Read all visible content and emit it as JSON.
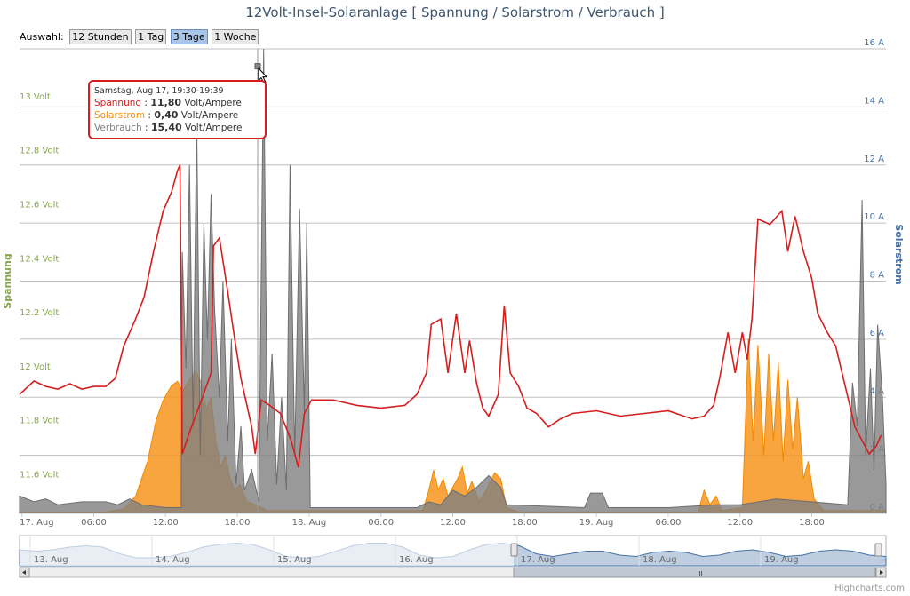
{
  "title": "12Volt-Insel-Solaranlage [ Spannung / Solarstrom / Verbrauch ]",
  "range_selector": {
    "label": "Auswahl:",
    "buttons": [
      "12 Stunden",
      "1 Tag",
      "3 Tage",
      "1 Woche"
    ],
    "active": "3 Tage"
  },
  "tooltip": {
    "header": "Samstag, Aug 17, 19:30-19:39",
    "rows": [
      {
        "name": "Spannung",
        "value": "11,80",
        "unit": "Volt/Ampere",
        "color": "#d61e1e"
      },
      {
        "name": "Solarstrom",
        "value": "0,40",
        "unit": "Volt/Ampere",
        "color": "#ff8c00"
      },
      {
        "name": "Verbrauch",
        "value": "15,40",
        "unit": "Volt/Ampere",
        "color": "#808080"
      }
    ]
  },
  "credits": "Highcharts.com",
  "colors": {
    "spannung": "#d61e1e",
    "solarstrom": "#f7941d",
    "verbrauch": "#808080",
    "left_axis": "#89a54e",
    "right_axis": "#4572a7",
    "navigator": "#4572a7"
  },
  "chart_data": {
    "type": "line",
    "xlabel": "",
    "x_ticks": [
      "17. Aug",
      "06:00",
      "12:00",
      "18:00",
      "18. Aug",
      "06:00",
      "12:00",
      "18:00",
      "19. Aug",
      "06:00",
      "12:00",
      "18:00"
    ],
    "x_tick_hours": [
      0,
      6,
      12,
      18,
      24,
      30,
      36,
      42,
      48,
      54,
      60,
      66
    ],
    "x_range_hours": [
      -0.2,
      72.2
    ],
    "y_left": {
      "label": "Spannung",
      "ticks": [
        "11.6 Volt",
        "11.8 Volt",
        "12 Volt",
        "12.2 Volt",
        "12.4 Volt",
        "12.6 Volt",
        "12.8 Volt",
        "13 Volt"
      ],
      "range": [
        11.48,
        13.2
      ],
      "unit": "Volt"
    },
    "y_right": {
      "label": "Solarstrom",
      "ticks": [
        "0 A",
        "2 A",
        "4 A",
        "6 A",
        "8 A",
        "10 A",
        "12 A",
        "14 A",
        "16 A"
      ],
      "range": [
        0,
        16
      ],
      "unit": "A"
    },
    "grid": true,
    "series": [
      {
        "name": "Spannung",
        "axis": "left",
        "type": "line",
        "points": [
          [
            -0.2,
            11.92
          ],
          [
            1,
            11.97
          ],
          [
            2,
            11.95
          ],
          [
            3,
            11.94
          ],
          [
            4,
            11.96
          ],
          [
            5,
            11.94
          ],
          [
            6,
            11.95
          ],
          [
            7,
            11.95
          ],
          [
            7.8,
            11.98
          ],
          [
            8.5,
            12.1
          ],
          [
            9.5,
            12.2
          ],
          [
            10.2,
            12.28
          ],
          [
            11,
            12.45
          ],
          [
            11.8,
            12.6
          ],
          [
            12.5,
            12.67
          ],
          [
            13,
            12.75
          ],
          [
            13.2,
            12.77
          ],
          [
            13.4,
            11.7
          ],
          [
            14,
            11.78
          ],
          [
            15,
            11.9
          ],
          [
            15.8,
            12.0
          ],
          [
            16,
            12.47
          ],
          [
            16.5,
            12.5
          ],
          [
            17.2,
            12.3
          ],
          [
            17.8,
            12.12
          ],
          [
            18.3,
            11.98
          ],
          [
            19.2,
            11.8
          ],
          [
            19.5,
            11.7
          ],
          [
            20,
            11.9
          ],
          [
            20.7,
            11.88
          ],
          [
            21.6,
            11.85
          ],
          [
            22.5,
            11.75
          ],
          [
            23.1,
            11.65
          ],
          [
            23.6,
            11.85
          ],
          [
            24.2,
            11.9
          ],
          [
            26,
            11.9
          ],
          [
            28,
            11.88
          ],
          [
            30,
            11.87
          ],
          [
            32,
            11.88
          ],
          [
            33,
            11.92
          ],
          [
            33.8,
            12.0
          ],
          [
            34.2,
            12.18
          ],
          [
            35,
            12.2
          ],
          [
            35.6,
            12.0
          ],
          [
            36.3,
            12.22
          ],
          [
            37,
            12.0
          ],
          [
            37.4,
            12.12
          ],
          [
            38,
            11.96
          ],
          [
            38.5,
            11.87
          ],
          [
            39,
            11.84
          ],
          [
            39.8,
            11.92
          ],
          [
            40.3,
            12.25
          ],
          [
            40.8,
            12.0
          ],
          [
            41.5,
            11.95
          ],
          [
            42.2,
            11.87
          ],
          [
            43,
            11.85
          ],
          [
            44,
            11.8
          ],
          [
            45,
            11.83
          ],
          [
            46,
            11.85
          ],
          [
            48,
            11.86
          ],
          [
            50,
            11.84
          ],
          [
            52,
            11.85
          ],
          [
            54,
            11.86
          ],
          [
            56,
            11.83
          ],
          [
            57,
            11.84
          ],
          [
            57.8,
            11.88
          ],
          [
            58.3,
            11.98
          ],
          [
            59,
            12.15
          ],
          [
            59.6,
            12.0
          ],
          [
            60.2,
            12.15
          ],
          [
            60.6,
            12.05
          ],
          [
            61,
            12.2
          ],
          [
            61.5,
            12.57
          ],
          [
            62.5,
            12.55
          ],
          [
            63.5,
            12.6
          ],
          [
            64,
            12.45
          ],
          [
            64.6,
            12.58
          ],
          [
            65.3,
            12.45
          ],
          [
            66,
            12.35
          ],
          [
            66.5,
            12.22
          ],
          [
            67.3,
            12.15
          ],
          [
            68,
            12.1
          ],
          [
            68.8,
            11.95
          ],
          [
            69.6,
            11.8
          ],
          [
            70.2,
            11.75
          ],
          [
            70.8,
            11.7
          ],
          [
            71.4,
            11.73
          ],
          [
            71.8,
            11.77
          ]
        ]
      },
      {
        "name": "Solarstrom",
        "axis": "right",
        "type": "area",
        "points": [
          [
            -0.2,
            0.05
          ],
          [
            7,
            0.05
          ],
          [
            8.5,
            0.15
          ],
          [
            9.5,
            0.6
          ],
          [
            10.5,
            1.8
          ],
          [
            11.2,
            3.2
          ],
          [
            11.8,
            3.9
          ],
          [
            12.5,
            4.4
          ],
          [
            13,
            4.55
          ],
          [
            13.4,
            4.2
          ],
          [
            14,
            4.6
          ],
          [
            14.5,
            4.9
          ],
          [
            15,
            4.5
          ],
          [
            15.4,
            3.6
          ],
          [
            15.8,
            4.0
          ],
          [
            16.2,
            2.5
          ],
          [
            16.6,
            1.6
          ],
          [
            17,
            2.0
          ],
          [
            17.4,
            1.2
          ],
          [
            17.8,
            0.8
          ],
          [
            18.2,
            1.0
          ],
          [
            18.8,
            0.4
          ],
          [
            19.5,
            0.3
          ],
          [
            20.5,
            0.1
          ],
          [
            33.5,
            0.1
          ],
          [
            34,
            0.8
          ],
          [
            34.4,
            1.5
          ],
          [
            34.8,
            0.8
          ],
          [
            35.2,
            1.2
          ],
          [
            35.6,
            0.6
          ],
          [
            36.4,
            1.2
          ],
          [
            36.8,
            1.6
          ],
          [
            37.2,
            0.7
          ],
          [
            37.6,
            1.1
          ],
          [
            38.2,
            0.4
          ],
          [
            38.8,
            0.8
          ],
          [
            39.5,
            1.4
          ],
          [
            40,
            1.2
          ],
          [
            40.5,
            0.2
          ],
          [
            41.5,
            0.05
          ],
          [
            56.5,
            0.05
          ],
          [
            57,
            0.8
          ],
          [
            57.5,
            0.3
          ],
          [
            58,
            0.6
          ],
          [
            58.5,
            0.1
          ],
          [
            60.2,
            0.2
          ],
          [
            60.7,
            6.0
          ],
          [
            61.1,
            2.5
          ],
          [
            61.5,
            5.8
          ],
          [
            62,
            2.0
          ],
          [
            62.4,
            5.5
          ],
          [
            62.8,
            2.5
          ],
          [
            63.2,
            5.2
          ],
          [
            63.6,
            1.8
          ],
          [
            64,
            4.6
          ],
          [
            64.4,
            2.2
          ],
          [
            64.8,
            4.0
          ],
          [
            65.3,
            1.2
          ],
          [
            65.7,
            1.8
          ],
          [
            66.2,
            0.5
          ],
          [
            67,
            0.1
          ],
          [
            72.2,
            0.1
          ]
        ]
      },
      {
        "name": "Verbrauch",
        "axis": "right",
        "type": "area",
        "points": [
          [
            -0.2,
            0.6
          ],
          [
            1,
            0.4
          ],
          [
            2,
            0.5
          ],
          [
            3,
            0.3
          ],
          [
            5,
            0.4
          ],
          [
            7,
            0.4
          ],
          [
            8,
            0.3
          ],
          [
            9,
            0.5
          ],
          [
            10,
            0.3
          ],
          [
            12,
            0.2
          ],
          [
            13.3,
            0.2
          ],
          [
            13.4,
            9.0
          ],
          [
            13.7,
            5.0
          ],
          [
            14,
            12.0
          ],
          [
            14.3,
            3.0
          ],
          [
            14.6,
            13.7
          ],
          [
            14.9,
            2.0
          ],
          [
            15.2,
            10.0
          ],
          [
            15.5,
            6.0
          ],
          [
            15.8,
            11.0
          ],
          [
            16.1,
            7.0
          ],
          [
            16.5,
            4.0
          ],
          [
            16.8,
            8.0
          ],
          [
            17.2,
            2.5
          ],
          [
            17.5,
            6.0
          ],
          [
            17.9,
            1.0
          ],
          [
            18.3,
            3.0
          ],
          [
            18.6,
            0.8
          ],
          [
            19.2,
            1.5
          ],
          [
            19.8,
            0.4
          ],
          [
            20.2,
            16.0
          ],
          [
            20.5,
            2.5
          ],
          [
            20.9,
            5.5
          ],
          [
            21.3,
            1.0
          ],
          [
            21.7,
            4.0
          ],
          [
            22.1,
            0.8
          ],
          [
            22.4,
            12.0
          ],
          [
            22.8,
            2.0
          ],
          [
            23.2,
            10.5
          ],
          [
            23.6,
            3.5
          ],
          [
            23.8,
            10.0
          ],
          [
            24.1,
            0.2
          ],
          [
            33,
            0.2
          ],
          [
            34,
            0.4
          ],
          [
            35,
            0.3
          ],
          [
            36,
            0.8
          ],
          [
            37,
            0.6
          ],
          [
            38,
            0.9
          ],
          [
            39,
            1.3
          ],
          [
            39.5,
            1.1
          ],
          [
            40,
            0.9
          ],
          [
            40.5,
            0.3
          ],
          [
            47,
            0.2
          ],
          [
            47.5,
            0.7
          ],
          [
            48.5,
            0.7
          ],
          [
            49,
            0.2
          ],
          [
            54,
            0.2
          ],
          [
            58,
            0.3
          ],
          [
            60,
            0.3
          ],
          [
            63,
            0.5
          ],
          [
            66,
            0.4
          ],
          [
            69,
            0.3
          ],
          [
            69.4,
            4.5
          ],
          [
            69.8,
            3.0
          ],
          [
            70.2,
            10.8
          ],
          [
            70.5,
            2.0
          ],
          [
            70.9,
            5.0
          ],
          [
            71.2,
            1.5
          ],
          [
            71.5,
            6.5
          ],
          [
            71.9,
            4.0
          ],
          [
            72.2,
            1.0
          ]
        ]
      }
    ],
    "navigator": {
      "labels": [
        "13. Aug",
        "14. Aug",
        "15. Aug",
        "16. Aug",
        "17. Aug",
        "18. Aug",
        "19. Aug"
      ],
      "selected_from": "17. Aug",
      "values": [
        0.6,
        0.55,
        0.6,
        0.7,
        0.75,
        0.7,
        0.45,
        0.3,
        0.3,
        0.35,
        0.5,
        0.7,
        0.8,
        0.85,
        0.8,
        0.6,
        0.35,
        0.3,
        0.35,
        0.55,
        0.75,
        0.85,
        0.85,
        0.7,
        0.4,
        0.3,
        0.35,
        0.6,
        0.8,
        0.85,
        0.75,
        0.45,
        0.35,
        0.45,
        0.55,
        0.55,
        0.4,
        0.35,
        0.5,
        0.55,
        0.5,
        0.35,
        0.4,
        0.55,
        0.6,
        0.5,
        0.35,
        0.4,
        0.55,
        0.6,
        0.55,
        0.4,
        0.35
      ]
    }
  }
}
